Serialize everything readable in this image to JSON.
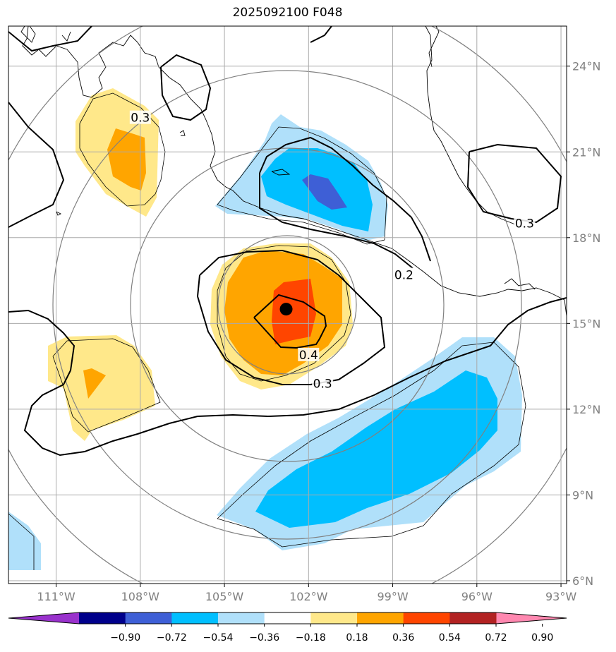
{
  "title": "2025092100 F048",
  "lon_ticks": [
    "111°W",
    "108°W",
    "105°W",
    "102°W",
    "99°W",
    "96°W",
    "93°W"
  ],
  "lat_ticks": [
    "24°N",
    "21°N",
    "18°N",
    "15°N",
    "12°N",
    "9°N",
    "6°N"
  ],
  "lon_values": [
    -111,
    -108,
    -105,
    -102,
    -99,
    -96,
    -93
  ],
  "lat_values": [
    24,
    21,
    18,
    15,
    12,
    9,
    6
  ],
  "map_extent": {
    "lon": [
      -112.7,
      -92.8
    ],
    "lat": [
      5.9,
      25.4
    ]
  },
  "storm_center": {
    "lon": -102.8,
    "lat": 15.5
  },
  "contour_labels": [
    {
      "text": "0.3",
      "lon": -108.0,
      "lat": 22.2
    },
    {
      "text": "0.3",
      "lon": -94.3,
      "lat": 18.5
    },
    {
      "text": "0.2",
      "lon": -98.6,
      "lat": 16.7
    },
    {
      "text": "0.4",
      "lon": -102.0,
      "lat": 13.9
    },
    {
      "text": "0.3",
      "lon": -101.5,
      "lat": 12.9
    }
  ],
  "colorbar": {
    "ticks": [
      "−0.90",
      "−0.72",
      "−0.54",
      "−0.36",
      "−0.18",
      "0.18",
      "0.36",
      "0.54",
      "0.72",
      "0.90"
    ],
    "colors": [
      "#9932cc",
      "#00008b",
      "#3e5fd6",
      "#00bfff",
      "#b0e0fa",
      "#ffffff",
      "#ffe88a",
      "#ffa500",
      "#ff4500",
      "#b22222",
      "#ff88b0"
    ]
  }
}
